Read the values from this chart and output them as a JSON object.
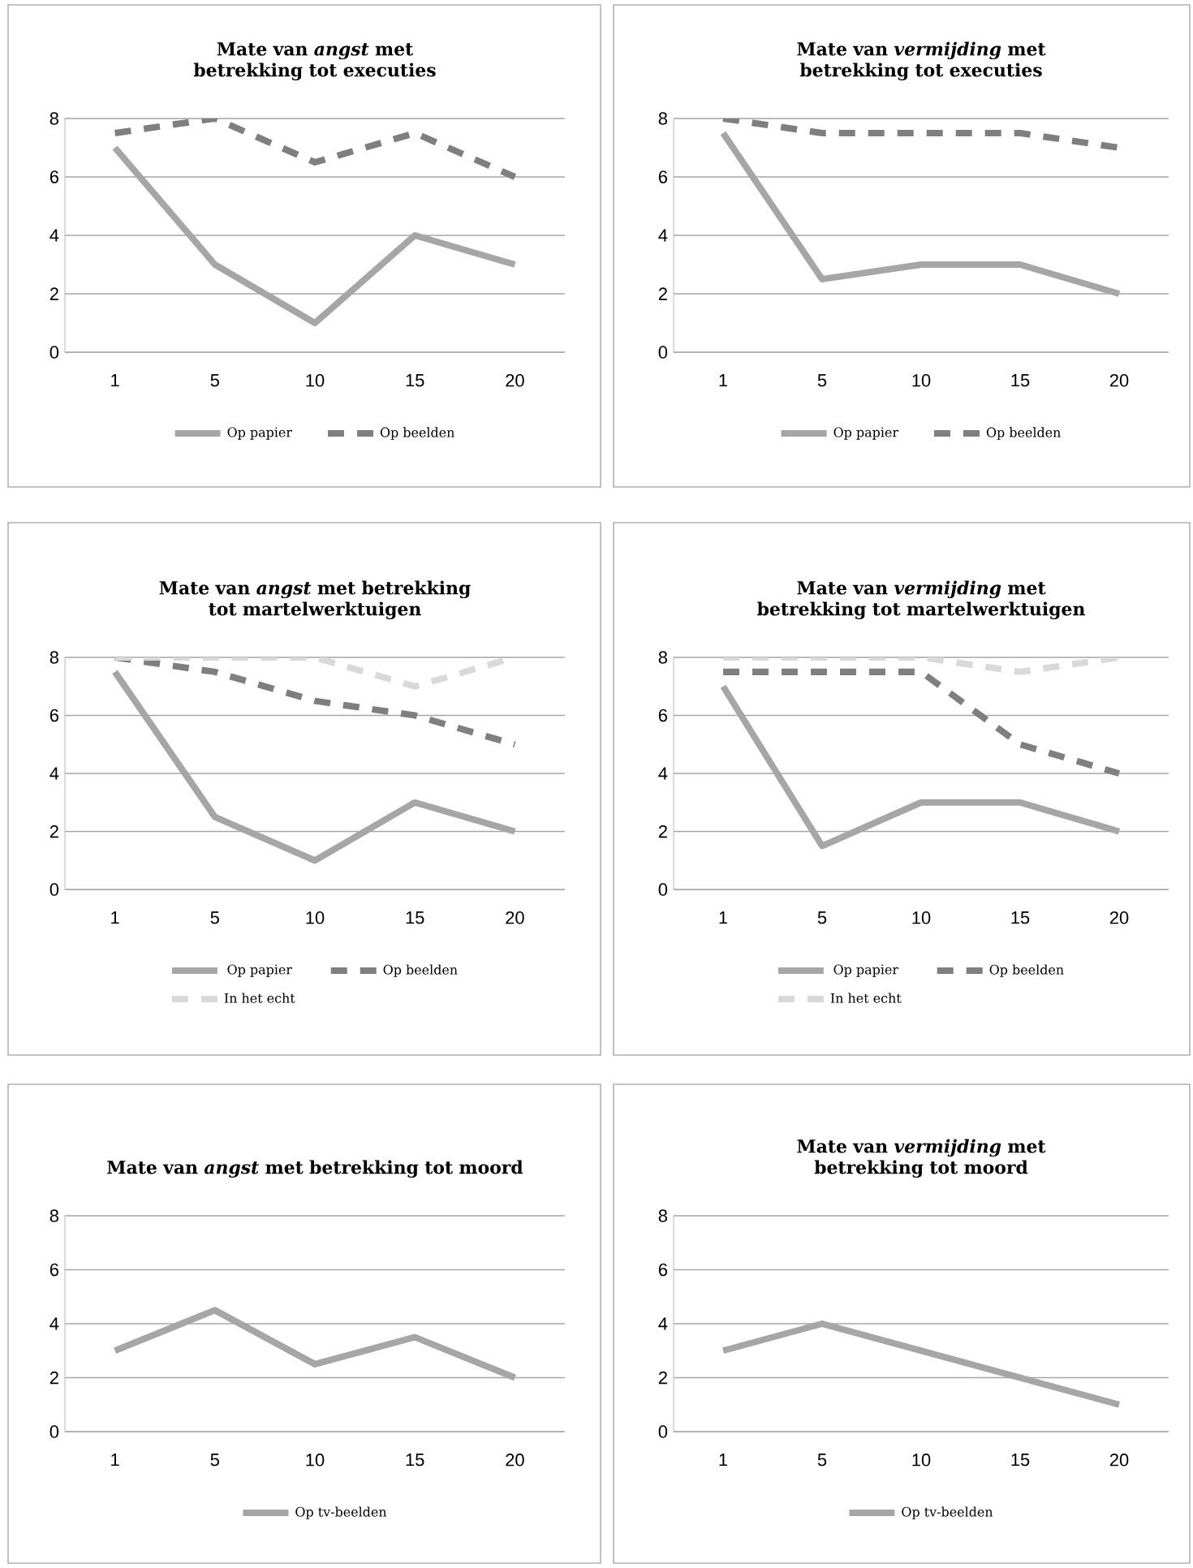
{
  "chart_data": [
    {
      "type": "line",
      "title": "Mate van *angst* met betrekking tot executies",
      "categories": [
        "1",
        "5",
        "10",
        "15",
        "20"
      ],
      "series": [
        {
          "name": "Op papier",
          "color": "#a6a6a6",
          "line_style": "solid",
          "values": [
            7,
            3,
            1,
            4,
            3
          ]
        },
        {
          "name": "Op beelden",
          "color": "#7f7f7f",
          "line_style": "dashed",
          "values": [
            7.5,
            8,
            6.5,
            7.5,
            6
          ]
        }
      ],
      "ylim": [
        0,
        8
      ],
      "yticks": [
        0,
        2,
        4,
        6,
        8
      ],
      "grid": "y",
      "legend": "bottom"
    },
    {
      "type": "line",
      "title": "Mate van *vermijding* met betrekking tot executies",
      "categories": [
        "1",
        "5",
        "10",
        "15",
        "20"
      ],
      "series": [
        {
          "name": "Op papier",
          "color": "#a6a6a6",
          "line_style": "solid",
          "values": [
            7.5,
            2.5,
            3,
            3,
            2
          ]
        },
        {
          "name": "Op beelden",
          "color": "#7f7f7f",
          "line_style": "dashed",
          "values": [
            8,
            7.5,
            7.5,
            7.5,
            7
          ]
        }
      ],
      "ylim": [
        0,
        8
      ],
      "yticks": [
        0,
        2,
        4,
        6,
        8
      ],
      "grid": "y",
      "legend": "bottom"
    },
    {
      "type": "line",
      "title": "Mate van *angst* met betrekking tot martelwerktuigen",
      "categories": [
        "1",
        "5",
        "10",
        "15",
        "20"
      ],
      "series": [
        {
          "name": "Op papier",
          "color": "#a6a6a6",
          "line_style": "solid",
          "values": [
            7.5,
            2.5,
            1,
            3,
            2
          ]
        },
        {
          "name": "Op beelden",
          "color": "#7f7f7f",
          "line_style": "dashed",
          "values": [
            8,
            7.5,
            6.5,
            6,
            5
          ]
        },
        {
          "name": "In het echt",
          "color": "#d9d9d9",
          "line_style": "dashed",
          "values": [
            8,
            8,
            8,
            7,
            8
          ]
        }
      ],
      "ylim": [
        0,
        8
      ],
      "yticks": [
        0,
        2,
        4,
        6,
        8
      ],
      "grid": "y",
      "legend": "bottom"
    },
    {
      "type": "line",
      "title": "Mate van *vermijding* met betrekking tot martelwerktuigen",
      "categories": [
        "1",
        "5",
        "10",
        "15",
        "20"
      ],
      "series": [
        {
          "name": "Op papier",
          "color": "#a6a6a6",
          "line_style": "solid",
          "values": [
            7,
            1.5,
            3,
            3,
            2
          ]
        },
        {
          "name": "Op beelden",
          "color": "#7f7f7f",
          "line_style": "dashed",
          "values": [
            7.5,
            7.5,
            7.5,
            5,
            4
          ]
        },
        {
          "name": "In het echt",
          "color": "#d9d9d9",
          "line_style": "dashed",
          "values": [
            8,
            8,
            8,
            7.5,
            8
          ]
        }
      ],
      "ylim": [
        0,
        8
      ],
      "yticks": [
        0,
        2,
        4,
        6,
        8
      ],
      "grid": "y",
      "legend": "bottom"
    },
    {
      "type": "line",
      "title": "Mate van *angst* met betrekking tot moord",
      "categories": [
        "1",
        "5",
        "10",
        "15",
        "20"
      ],
      "series": [
        {
          "name": "Op tv-beelden",
          "color": "#a6a6a6",
          "line_style": "solid",
          "values": [
            3,
            4.5,
            2.5,
            3.5,
            2
          ]
        }
      ],
      "ylim": [
        0,
        8
      ],
      "yticks": [
        0,
        2,
        4,
        6,
        8
      ],
      "grid": "y",
      "legend": "bottom"
    },
    {
      "type": "line",
      "title": "Mate van *vermijding* met betrekking tot moord",
      "categories": [
        "1",
        "5",
        "10",
        "15",
        "20"
      ],
      "series": [
        {
          "name": "Op tv-beelden",
          "color": "#a6a6a6",
          "line_style": "solid",
          "values": [
            3,
            4,
            3,
            2,
            1
          ]
        }
      ],
      "ylim": [
        0,
        8
      ],
      "yticks": [
        0,
        2,
        4,
        6,
        8
      ],
      "grid": "y",
      "legend": "bottom"
    }
  ]
}
